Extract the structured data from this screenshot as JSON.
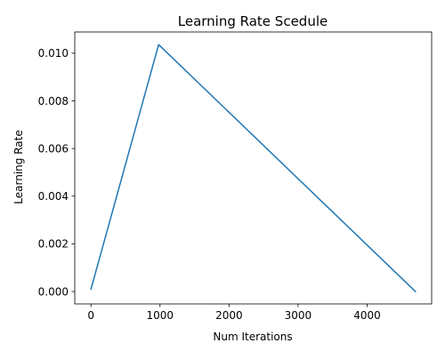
{
  "chart_data": {
    "type": "line",
    "title": "Learning Rate Scedule",
    "xlabel": "Num Iterations",
    "ylabel": "Learning Rate",
    "xlim": [
      -235,
      4935
    ],
    "ylim": [
      -0.00052,
      0.01089
    ],
    "xticks": [
      0,
      1000,
      2000,
      3000,
      4000
    ],
    "xtick_labels": [
      "0",
      "1000",
      "2000",
      "3000",
      "4000"
    ],
    "yticks": [
      0.0,
      0.002,
      0.004,
      0.006,
      0.008,
      0.01
    ],
    "ytick_labels": [
      "0.000",
      "0.002",
      "0.004",
      "0.006",
      "0.008",
      "0.010"
    ],
    "grid": false,
    "series": [
      {
        "color": "#1f77b4",
        "x": [
          0,
          980,
          4700
        ],
        "y": [
          0.0001,
          0.01036,
          0.0
        ]
      }
    ]
  }
}
